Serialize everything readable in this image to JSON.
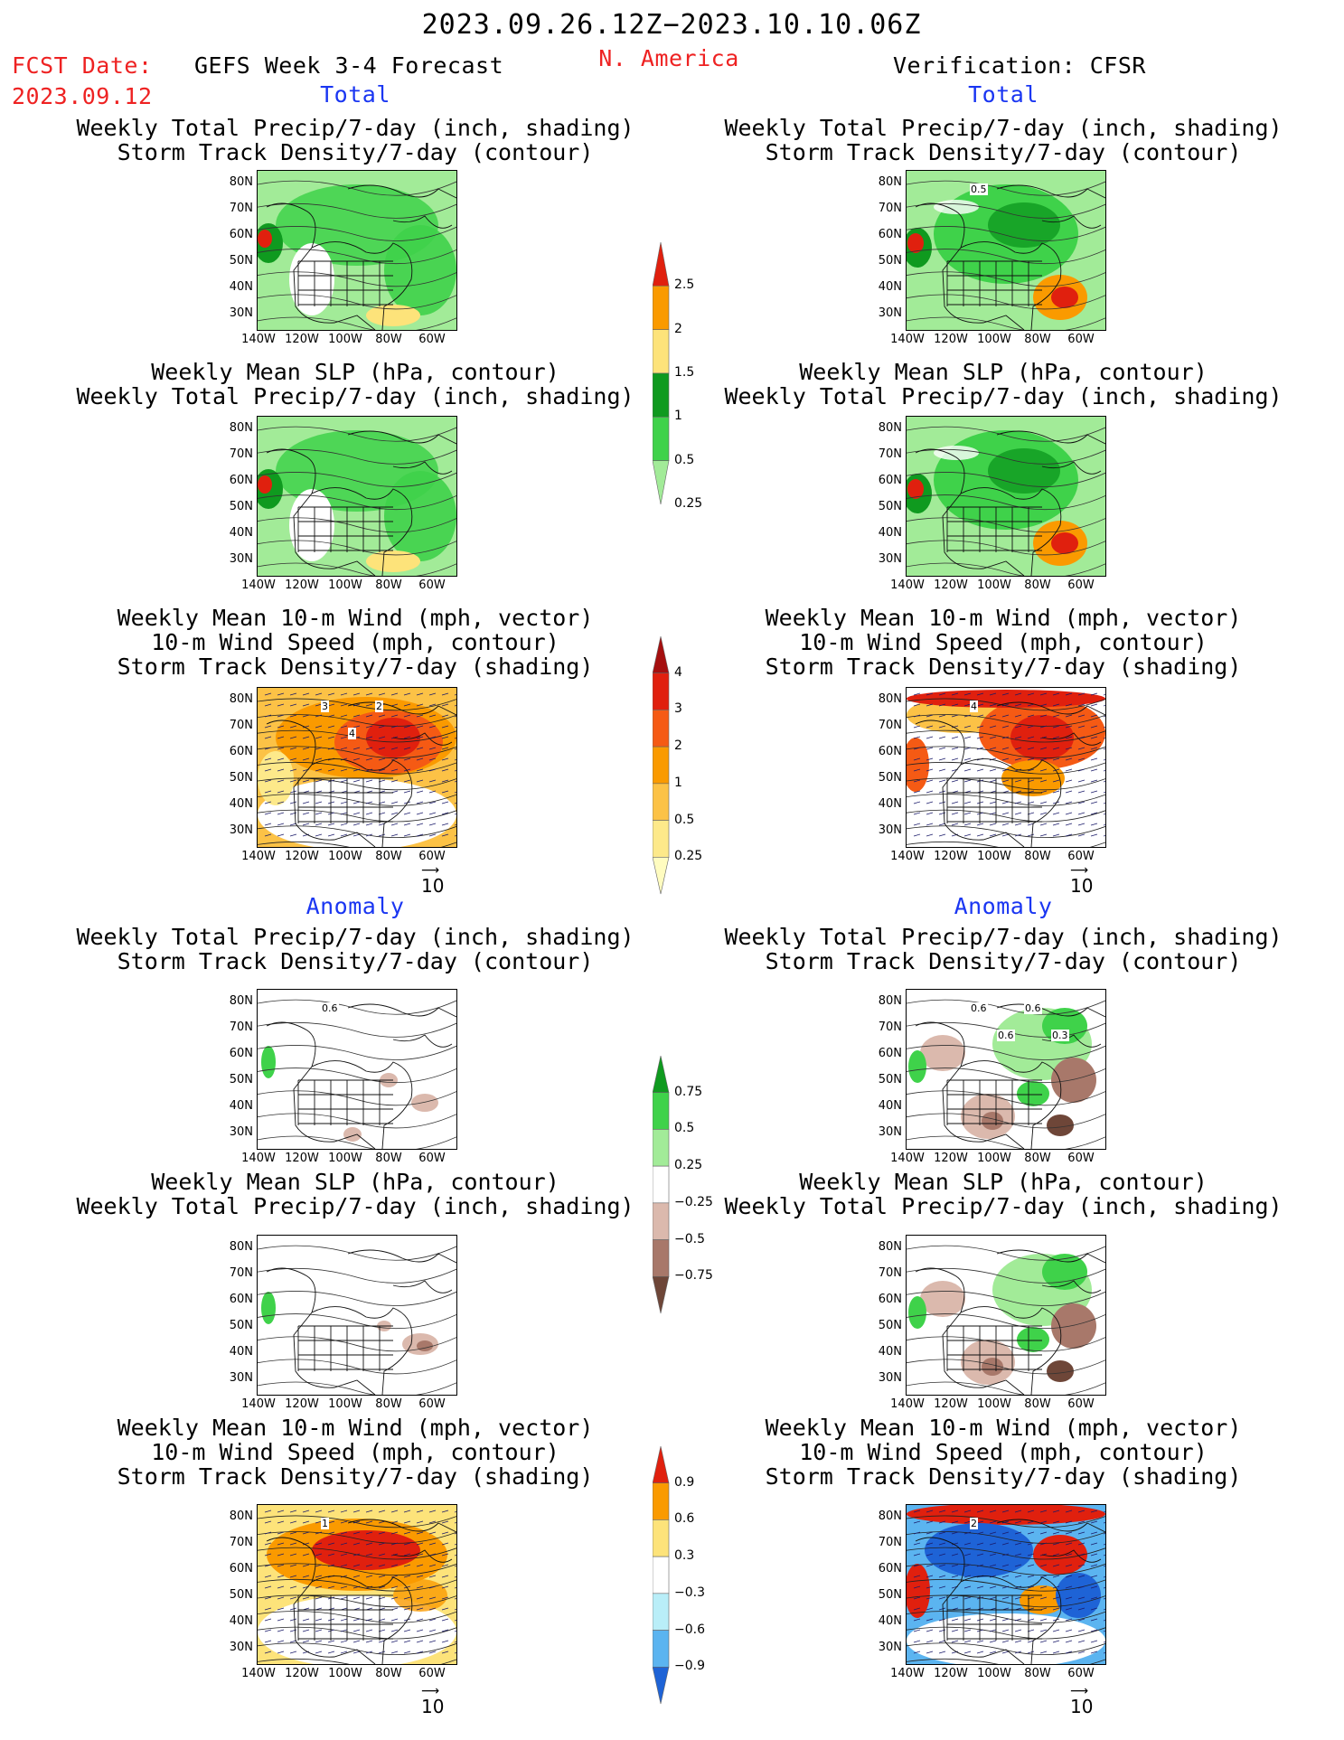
{
  "header": {
    "period": "2023.09.26.12Z−2023.10.10.06Z",
    "fcst_label": "FCST Date:",
    "fcst_date": "2023.09.12",
    "model_title": "GEFS Week 3-4 Forecast",
    "region": "N. America",
    "verification": "Verification: CFSR"
  },
  "sections": {
    "total": "Total",
    "anomaly": "Anomaly"
  },
  "titles": {
    "precip_storm": [
      "Weekly Total Precip/7-day (inch, shading)",
      "Storm Track Density/7-day (contour)"
    ],
    "slp_precip": [
      "Weekly Mean SLP (hPa, contour)",
      "Weekly Total Precip/7-day (inch, shading)"
    ],
    "wind_storm": [
      "Weekly Mean 10-m Wind (mph, vector)",
      "10-m Wind Speed (mph, contour)",
      "Storm Track Density/7-day (shading)"
    ]
  },
  "axes": {
    "lat_ticks": [
      "80N",
      "70N",
      "60N",
      "50N",
      "40N",
      "30N"
    ],
    "lon_ticks": [
      "140W",
      "120W",
      "100W",
      "80W",
      "60W"
    ]
  },
  "reference_vector": "10",
  "colorbars": {
    "total_precip": {
      "labels": [
        "2.5",
        "2",
        "1.5",
        "1",
        "0.5",
        "0.25"
      ],
      "colors": [
        "#e0200e",
        "#fa9a00",
        "#fde37a",
        "#0f9a1f",
        "#3fd24a",
        "#a2eb98"
      ]
    },
    "total_storm": {
      "labels": [
        "4",
        "3",
        "2",
        "1",
        "0.5",
        "0.25"
      ],
      "colors": [
        "#a50f0f",
        "#e0200e",
        "#f55a14",
        "#fa9a00",
        "#fcc246",
        "#fde98a",
        "#fffcc0"
      ]
    },
    "anom_precip": {
      "labels": [
        "0.75",
        "0.5",
        "0.25",
        "−0.25",
        "−0.5",
        "−0.75"
      ],
      "colors": [
        "#0f9a1f",
        "#3fd24a",
        "#a2eb98",
        "#ffffff",
        "#dbb9ad",
        "#a8786a",
        "#6e4638"
      ]
    },
    "anom_storm": {
      "labels": [
        "0.9",
        "0.6",
        "0.3",
        "−0.3",
        "−0.6",
        "−0.9"
      ],
      "colors": [
        "#e0200e",
        "#fa9a00",
        "#fde37a",
        "#ffffff",
        "#b9eef8",
        "#5bb4f0",
        "#1e63d6"
      ]
    }
  },
  "panel_labels": {
    "total_fcst_wind": [
      "3",
      "4",
      "2"
    ],
    "total_ver_wind": [
      "4"
    ],
    "total_ver_precip": [
      "0.5"
    ],
    "anom_fcst_precip": [
      "0.6"
    ],
    "anom_ver_precip": [
      "0.6",
      "0.6",
      "0.6",
      "0.3"
    ],
    "anom_fcst_wind": [
      "1"
    ],
    "anom_ver_wind": [
      "2"
    ]
  }
}
